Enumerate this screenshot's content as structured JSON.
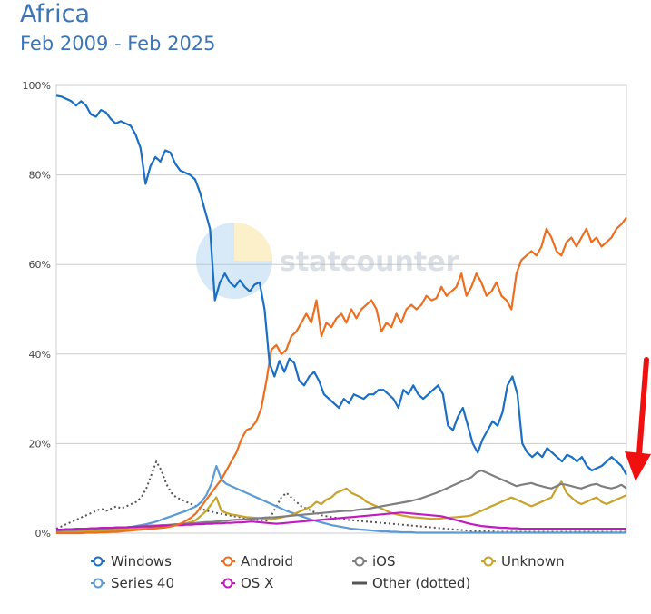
{
  "title": "Africa",
  "subtitle": "Feb 2009 - Feb 2025",
  "watermark": "statcounter",
  "chart_data": {
    "type": "line",
    "x_range": [
      "Feb 2009",
      "Feb 2025"
    ],
    "ylim": [
      0,
      100
    ],
    "y_ticks": [
      "0%",
      "20%",
      "40%",
      "60%",
      "80%",
      "100%"
    ],
    "grid": true,
    "legend_position": "bottom",
    "series": [
      {
        "name": "Windows",
        "color": "#1a6fc4",
        "style": "solid",
        "values": [
          97.7,
          97.5,
          97.0,
          96.5,
          95.5,
          96.5,
          95.5,
          93.5,
          93.0,
          94.5,
          94.0,
          92.5,
          91.5,
          92.0,
          91.5,
          91.0,
          89.0,
          86.0,
          78.0,
          82.0,
          84.0,
          83.0,
          85.5,
          85.0,
          82.5,
          81.0,
          80.5,
          80.0,
          79.0,
          76.0,
          72.0,
          68.0,
          52.0,
          56.0,
          58.0,
          56.0,
          55.0,
          56.5,
          55.0,
          54.0,
          55.5,
          56.0,
          50.0,
          38.0,
          35.0,
          38.5,
          36.0,
          39.0,
          38.0,
          34.0,
          33.0,
          35.0,
          36.0,
          34.0,
          31.0,
          30.0,
          29.0,
          28.0,
          30.0,
          29.0,
          31.0,
          30.5,
          30.0,
          31.0,
          31.0,
          32.0,
          32.0,
          31.0,
          30.0,
          28.0,
          32.0,
          31.0,
          33.0,
          31.0,
          30.0,
          31.0,
          32.0,
          33.0,
          31.0,
          24.0,
          23.0,
          26.0,
          28.0,
          24.0,
          20.0,
          18.0,
          21.0,
          23.0,
          25.0,
          24.0,
          27.0,
          33.0,
          35.0,
          31.0,
          20.0,
          18.0,
          17.0,
          18.0,
          17.0,
          19.0,
          18.0,
          17.0,
          16.0,
          17.5,
          17.0,
          16.0,
          17.0,
          15.0,
          14.0,
          14.5,
          15.0,
          16.0,
          17.0,
          16.0,
          15.0,
          13.0
        ]
      },
      {
        "name": "Android",
        "color": "#ee6e1f",
        "style": "solid",
        "values": [
          0.0,
          0.0,
          0.0,
          0.0,
          0.0,
          0.0,
          0.1,
          0.1,
          0.1,
          0.2,
          0.2,
          0.3,
          0.3,
          0.4,
          0.5,
          0.6,
          0.7,
          0.8,
          0.9,
          1.0,
          1.1,
          1.2,
          1.3,
          1.5,
          1.8,
          2.2,
          2.8,
          3.5,
          4.5,
          6.0,
          7.5,
          9.0,
          10.5,
          12.0,
          14.0,
          16.0,
          18.0,
          21.0,
          23.0,
          23.5,
          25.0,
          28.0,
          34.0,
          41.0,
          42.0,
          40.0,
          41.0,
          44.0,
          45.0,
          47.0,
          49.0,
          47.0,
          52.0,
          44.0,
          47.0,
          46.0,
          48.0,
          49.0,
          47.0,
          50.0,
          48.0,
          50.0,
          51.0,
          52.0,
          50.0,
          45.0,
          47.0,
          46.0,
          49.0,
          47.0,
          50.0,
          51.0,
          50.0,
          51.0,
          53.0,
          52.0,
          52.5,
          55.0,
          53.0,
          54.0,
          55.0,
          58.0,
          53.0,
          55.0,
          58.0,
          56.0,
          53.0,
          54.0,
          56.0,
          53.0,
          52.0,
          50.0,
          58.0,
          61.0,
          62.0,
          63.0,
          62.0,
          64.0,
          68.0,
          66.0,
          63.0,
          62.0,
          65.0,
          66.0,
          64.0,
          66.0,
          68.0,
          65.0,
          66.0,
          64.0,
          65.0,
          66.0,
          68.0,
          69.0,
          70.5
        ]
      },
      {
        "name": "iOS",
        "color": "#7f7f7f",
        "style": "solid",
        "values": [
          0.5,
          0.6,
          0.7,
          0.7,
          0.8,
          0.8,
          0.9,
          1.0,
          1.0,
          1.1,
          1.1,
          1.2,
          1.2,
          1.3,
          1.3,
          1.4,
          1.5,
          1.5,
          1.6,
          1.7,
          1.7,
          1.8,
          1.8,
          1.9,
          2.0,
          2.0,
          2.1,
          2.2,
          2.3,
          2.4,
          2.5,
          2.5,
          2.6,
          2.7,
          2.8,
          2.9,
          3.0,
          3.0,
          3.1,
          3.2,
          3.3,
          3.4,
          3.5,
          3.5,
          3.6,
          3.7,
          3.8,
          3.9,
          4.0,
          4.1,
          4.2,
          4.3,
          4.4,
          4.5,
          4.6,
          4.7,
          4.8,
          4.9,
          5.0,
          5.0,
          5.2,
          5.3,
          5.4,
          5.6,
          5.8,
          6.0,
          6.2,
          6.4,
          6.6,
          6.8,
          7.0,
          7.2,
          7.5,
          7.8,
          8.2,
          8.6,
          9.0,
          9.5,
          10.0,
          10.5,
          11.0,
          11.5,
          12.0,
          12.5,
          13.5,
          14.0,
          13.5,
          13.0,
          12.5,
          12.0,
          11.5,
          11.0,
          10.5,
          10.8,
          11.0,
          11.2,
          10.8,
          10.5,
          10.2,
          10.0,
          10.5,
          11.0,
          10.8,
          10.5,
          10.2,
          10.0,
          10.4,
          10.8,
          11.0,
          10.5,
          10.2,
          10.0,
          10.3,
          10.8,
          10.0
        ]
      },
      {
        "name": "Unknown",
        "color": "#c9a227",
        "style": "solid",
        "values": [
          0.3,
          0.2,
          0.3,
          0.2,
          0.3,
          0.3,
          0.4,
          0.4,
          0.5,
          0.5,
          0.6,
          0.7,
          0.7,
          0.8,
          0.9,
          1.0,
          1.0,
          1.1,
          1.2,
          1.3,
          1.4,
          1.5,
          1.6,
          1.7,
          1.8,
          2.0,
          2.2,
          2.5,
          3.0,
          4.0,
          5.0,
          6.5,
          8.0,
          5.0,
          4.5,
          4.2,
          4.0,
          3.8,
          3.6,
          3.5,
          3.4,
          3.3,
          3.2,
          3.0,
          3.3,
          3.5,
          3.8,
          4.0,
          4.5,
          5.0,
          5.5,
          6.0,
          7.0,
          6.5,
          7.5,
          8.0,
          9.0,
          9.5,
          10.0,
          9.0,
          8.5,
          8.0,
          7.0,
          6.5,
          6.0,
          5.5,
          5.0,
          4.5,
          4.2,
          4.0,
          3.8,
          3.6,
          3.5,
          3.4,
          3.3,
          3.2,
          3.2,
          3.3,
          3.4,
          3.5,
          3.6,
          3.7,
          3.8,
          4.0,
          4.5,
          5.0,
          5.5,
          6.0,
          6.5,
          7.0,
          7.5,
          8.0,
          7.5,
          7.0,
          6.5,
          6.0,
          6.5,
          7.0,
          7.5,
          8.0,
          10.0,
          11.5,
          9.0,
          8.0,
          7.0,
          6.5,
          7.0,
          7.5,
          8.0,
          7.0,
          6.5,
          7.0,
          7.5,
          8.0,
          8.5
        ]
      },
      {
        "name": "Series 40",
        "color": "#5b9bd5",
        "style": "solid",
        "values": [
          0.2,
          0.3,
          0.3,
          0.4,
          0.4,
          0.5,
          0.5,
          0.6,
          0.7,
          0.8,
          0.9,
          1.0,
          1.1,
          1.2,
          1.3,
          1.4,
          1.6,
          1.8,
          2.0,
          2.3,
          2.6,
          3.0,
          3.4,
          3.8,
          4.2,
          4.6,
          5.0,
          5.5,
          6.0,
          7.0,
          8.5,
          11.0,
          15.0,
          12.0,
          11.0,
          10.5,
          10.0,
          9.5,
          9.0,
          8.5,
          8.0,
          7.5,
          7.0,
          6.5,
          6.0,
          5.5,
          5.0,
          4.6,
          4.2,
          3.8,
          3.4,
          3.0,
          2.7,
          2.4,
          2.1,
          1.8,
          1.6,
          1.4,
          1.2,
          1.0,
          0.9,
          0.8,
          0.7,
          0.6,
          0.5,
          0.4,
          0.4,
          0.3,
          0.3,
          0.2,
          0.2,
          0.2,
          0.1,
          0.1,
          0.1,
          0.1,
          0.1,
          0.1,
          0.1,
          0.1,
          0.1,
          0.1,
          0.1,
          0.1,
          0.1,
          0.1,
          0.1,
          0.1,
          0.1,
          0.1,
          0.1,
          0.1,
          0.1,
          0.1,
          0.1,
          0.1,
          0.1,
          0.1,
          0.1,
          0.1,
          0.1,
          0.1,
          0.1,
          0.1,
          0.1,
          0.1,
          0.1,
          0.1,
          0.1,
          0.1,
          0.1,
          0.1,
          0.1,
          0.1,
          0.1
        ]
      },
      {
        "name": "OS X",
        "color": "#c21ac2",
        "style": "solid",
        "values": [
          0.8,
          0.8,
          0.9,
          0.9,
          1.0,
          1.0,
          1.0,
          1.1,
          1.1,
          1.2,
          1.2,
          1.2,
          1.3,
          1.3,
          1.3,
          1.4,
          1.4,
          1.5,
          1.5,
          1.5,
          1.6,
          1.6,
          1.7,
          1.7,
          1.8,
          1.8,
          1.9,
          1.9,
          2.0,
          2.0,
          2.1,
          2.1,
          2.2,
          2.2,
          2.3,
          2.3,
          2.4,
          2.4,
          2.5,
          2.6,
          2.5,
          2.4,
          2.3,
          2.2,
          2.1,
          2.2,
          2.3,
          2.4,
          2.5,
          2.6,
          2.7,
          2.8,
          2.9,
          3.0,
          3.1,
          3.2,
          3.3,
          3.4,
          3.5,
          3.6,
          3.7,
          3.8,
          3.9,
          4.0,
          4.1,
          4.2,
          4.3,
          4.4,
          4.5,
          4.6,
          4.5,
          4.4,
          4.3,
          4.2,
          4.1,
          4.0,
          3.9,
          3.8,
          3.5,
          3.2,
          2.9,
          2.6,
          2.3,
          2.0,
          1.8,
          1.6,
          1.5,
          1.4,
          1.3,
          1.2,
          1.2,
          1.1,
          1.1,
          1.0,
          1.0,
          1.0,
          1.0,
          1.0,
          1.0,
          1.0,
          1.0,
          1.0,
          1.0,
          1.0,
          1.0,
          1.0,
          1.0,
          1.0,
          1.0,
          1.0,
          1.0,
          1.0,
          1.0,
          1.0,
          1.0
        ]
      },
      {
        "name": "Other (dotted)",
        "color": "#555555",
        "style": "dotted",
        "values": [
          1.0,
          1.5,
          2.0,
          2.5,
          3.0,
          3.5,
          4.0,
          4.5,
          5.0,
          5.5,
          5.0,
          5.5,
          6.0,
          5.5,
          6.0,
          6.5,
          7.0,
          8.0,
          10.0,
          13.0,
          16.0,
          14.0,
          11.0,
          9.0,
          8.0,
          7.5,
          7.0,
          6.5,
          6.0,
          5.5,
          5.0,
          4.8,
          4.5,
          4.3,
          4.1,
          3.9,
          3.7,
          3.5,
          3.3,
          3.1,
          3.0,
          2.9,
          2.8,
          4.0,
          6.0,
          8.0,
          9.0,
          8.0,
          7.0,
          6.0,
          5.5,
          5.0,
          4.5,
          4.0,
          3.8,
          3.6,
          3.4,
          3.2,
          3.0,
          2.9,
          2.8,
          2.7,
          2.6,
          2.5,
          2.4,
          2.3,
          2.2,
          2.1,
          2.0,
          1.9,
          1.8,
          1.7,
          1.6,
          1.5,
          1.4,
          1.3,
          1.2,
          1.1,
          1.0,
          0.9,
          0.8,
          0.7,
          0.6,
          0.5,
          0.5,
          0.4,
          0.4,
          0.4,
          0.3,
          0.3,
          0.3,
          0.3,
          0.3,
          0.3,
          0.3,
          0.3,
          0.3,
          0.3,
          0.3,
          0.3,
          0.3,
          0.3,
          0.3,
          0.3,
          0.3,
          0.3,
          0.3,
          0.3,
          0.3,
          0.3,
          0.3,
          0.3,
          0.3,
          0.3,
          0.3
        ]
      }
    ]
  },
  "annotation": {
    "type": "arrow",
    "color": "#f01010"
  }
}
